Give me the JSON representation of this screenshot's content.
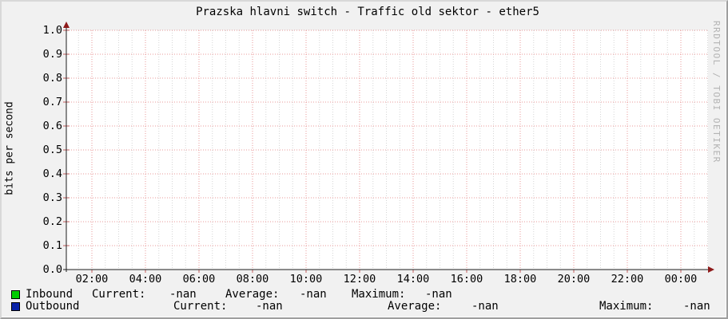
{
  "title": "Prazska hlavni switch - Traffic old sektor - ether5",
  "watermark": "RRDTOOL / TOBI OETIKER",
  "colors": {
    "inbound": "#00cc00",
    "outbound": "#0a23a8",
    "grid_major": "#e89898",
    "grid_minor": "#d6d6d6",
    "axis": "#1c1c1c",
    "arrow": "#8e1a1a",
    "tick": "#c25c5c",
    "canvas": "#ffffff",
    "background": "#f1f1f1"
  },
  "chart_data": {
    "type": "line",
    "title": "Prazska hlavni switch - Traffic old sektor - ether5",
    "xlabel": "",
    "ylabel": "bits per second",
    "ylim": [
      0.0,
      1.0
    ],
    "y_ticks": [
      "1.0",
      "0.9",
      "0.8",
      "0.7",
      "0.6",
      "0.5",
      "0.4",
      "0.3",
      "0.2",
      "0.1",
      "0.0"
    ],
    "x_ticks": [
      "02:00",
      "04:00",
      "06:00",
      "08:00",
      "10:00",
      "12:00",
      "14:00",
      "16:00",
      "18:00",
      "20:00",
      "22:00",
      "00:00"
    ],
    "grid": true,
    "legend_position": "bottom",
    "series": [
      {
        "name": "Inbound",
        "color": "#00cc00",
        "values": [],
        "stats": {
          "current": "-nan",
          "average": "-nan",
          "maximum": "-nan"
        }
      },
      {
        "name": "Outbound",
        "color": "#0a23a8",
        "values": [],
        "stats": {
          "current": "-nan",
          "average": "-nan",
          "maximum": "-nan"
        }
      }
    ]
  },
  "legend": {
    "rows": [
      {
        "name": "Inbound",
        "swatch": "#00cc00",
        "items": [
          {
            "label": "Current:",
            "value": "-nan"
          },
          {
            "label": "Average:",
            "value": "-nan"
          },
          {
            "label": "Maximum:",
            "value": "-nan"
          }
        ]
      },
      {
        "name": "Outbound",
        "swatch": "#0a23a8",
        "items": [
          {
            "label": "Current:",
            "value": "-nan"
          },
          {
            "label": "Average:",
            "value": "-nan"
          },
          {
            "label": "Maximum:",
            "value": "-nan"
          }
        ]
      }
    ]
  }
}
